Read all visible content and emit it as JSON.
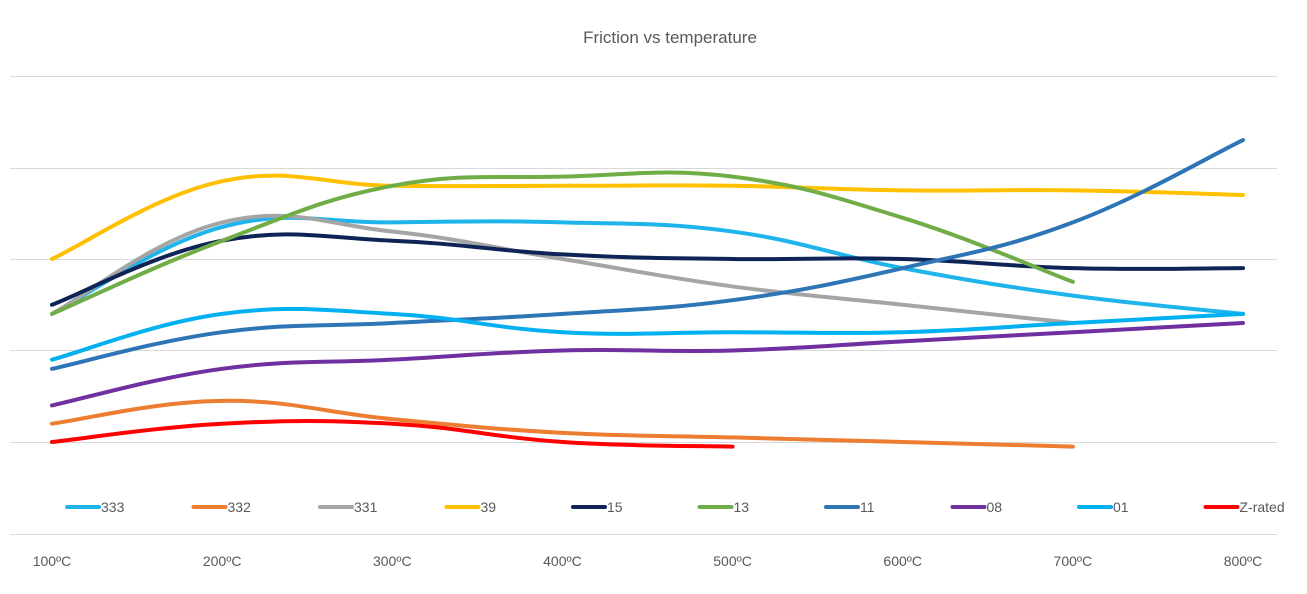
{
  "chart_data": {
    "type": "line",
    "title": "Friction vs temperature",
    "xlabel": "",
    "ylabel": "",
    "x": [
      "100ºC",
      "200ºC",
      "300ºC",
      "400ºC",
      "500ºC",
      "600ºC",
      "700ºC",
      "800ºC"
    ],
    "grid": true,
    "legend_position": "bottom",
    "series": [
      {
        "name": "333",
        "color": "#1fb4ec",
        "values": [
          0.44,
          0.535,
          0.54,
          0.54,
          0.53,
          0.49,
          0.46,
          0.44
        ]
      },
      {
        "name": "332",
        "color": "#ed7d31",
        "values": [
          0.32,
          0.345,
          0.325,
          0.31,
          0.305,
          0.3,
          0.295,
          null
        ]
      },
      {
        "name": "331",
        "color": "#a5a5a5",
        "values": [
          0.44,
          0.54,
          0.53,
          0.5,
          0.47,
          0.45,
          0.43,
          null
        ]
      },
      {
        "name": "39",
        "color": "#ffc000",
        "values": [
          0.5,
          0.585,
          0.58,
          0.58,
          0.58,
          0.575,
          0.575,
          0.57
        ]
      },
      {
        "name": "15",
        "color": "#0f2456",
        "values": [
          0.45,
          0.52,
          0.52,
          0.505,
          0.5,
          0.5,
          0.49,
          0.49
        ]
      },
      {
        "name": "13",
        "color": "#70ad47",
        "values": [
          0.44,
          0.52,
          0.58,
          0.59,
          0.59,
          0.545,
          0.475,
          null
        ]
      },
      {
        "name": "11",
        "color": "#2e75b6",
        "values": [
          0.38,
          0.42,
          0.43,
          0.44,
          0.455,
          0.49,
          0.54,
          0.63
        ]
      },
      {
        "name": "08",
        "color": "#7030a0",
        "values": [
          0.34,
          0.38,
          0.39,
          0.4,
          0.4,
          0.41,
          0.42,
          0.43
        ]
      },
      {
        "name": "01",
        "color": "#00b0f0",
        "values": [
          0.39,
          0.44,
          0.44,
          0.42,
          0.42,
          0.42,
          0.43,
          0.44
        ]
      },
      {
        "name": "Z-rated",
        "color": "#ff0000",
        "values": [
          0.3,
          0.32,
          0.32,
          0.3,
          0.295,
          null,
          null,
          null
        ]
      }
    ],
    "ylim": [
      0.1,
      0.7
    ]
  }
}
